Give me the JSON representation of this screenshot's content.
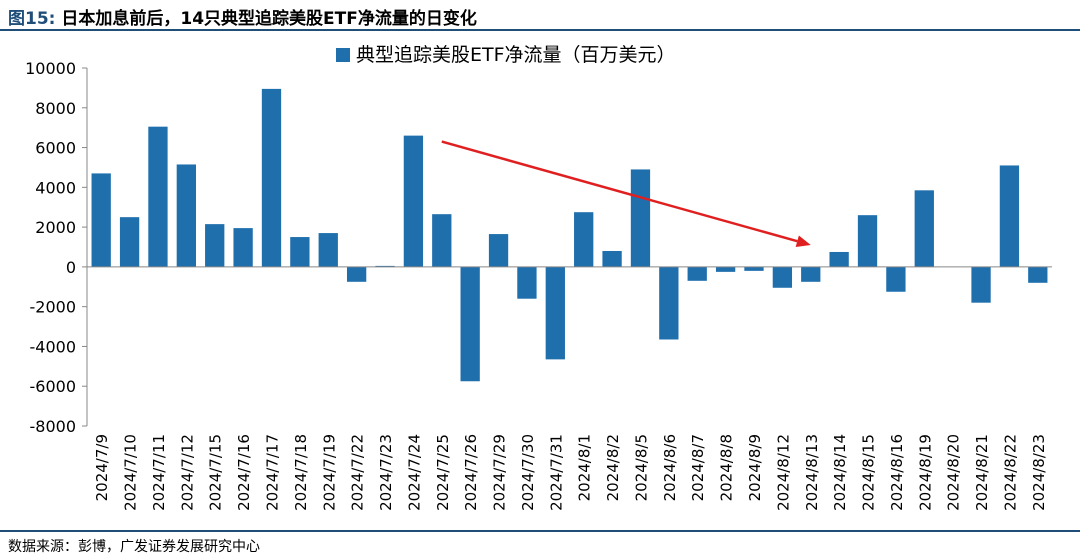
{
  "figure": {
    "label": "图15:",
    "title": "日本加息前后，14只典型追踪美股ETF净流量的日变化",
    "source": "数据来源：彭博，广发证券发展研究中心"
  },
  "colors": {
    "bar": "#1f6fad",
    "arrow": "#e02020",
    "rule": "#1f4e79"
  },
  "chart_data": {
    "type": "bar",
    "categories": [
      "2024/7/9",
      "2024/7/10",
      "2024/7/11",
      "2024/7/12",
      "2024/7/15",
      "2024/7/16",
      "2024/7/17",
      "2024/7/18",
      "2024/7/19",
      "2024/7/22",
      "2024/7/23",
      "2024/7/24",
      "2024/7/25",
      "2024/7/26",
      "2024/7/29",
      "2024/7/30",
      "2024/7/31",
      "2024/8/1",
      "2024/8/2",
      "2024/8/5",
      "2024/8/6",
      "2024/8/7",
      "2024/8/8",
      "2024/8/9",
      "2024/8/12",
      "2024/8/13",
      "2024/8/14",
      "2024/8/15",
      "2024/8/16",
      "2024/8/19",
      "2024/8/20",
      "2024/8/21",
      "2024/8/22",
      "2024/8/23"
    ],
    "series": [
      {
        "name": "典型追踪美股ETF净流量（百万美元）",
        "values": [
          4700,
          2500,
          7050,
          5150,
          2150,
          1950,
          8950,
          1500,
          1700,
          -750,
          50,
          6600,
          2650,
          -5750,
          1650,
          -1600,
          -4650,
          2750,
          800,
          4900,
          -3650,
          -700,
          -250,
          -200,
          -1050,
          -750,
          750,
          2600,
          -1250,
          3850,
          0,
          -1800,
          5100,
          -800
        ]
      }
    ],
    "ylim": [
      -8000,
      10000
    ],
    "yticks": [
      -8000,
      -6000,
      -4000,
      -2000,
      0,
      2000,
      4000,
      6000,
      8000,
      10000
    ],
    "legend_position": "top-center",
    "grid": false,
    "annotation": {
      "type": "arrow",
      "from": {
        "x": "2024/7/25",
        "y": 6300
      },
      "to": {
        "x": "2024/8/13",
        "y": 1100
      }
    }
  }
}
